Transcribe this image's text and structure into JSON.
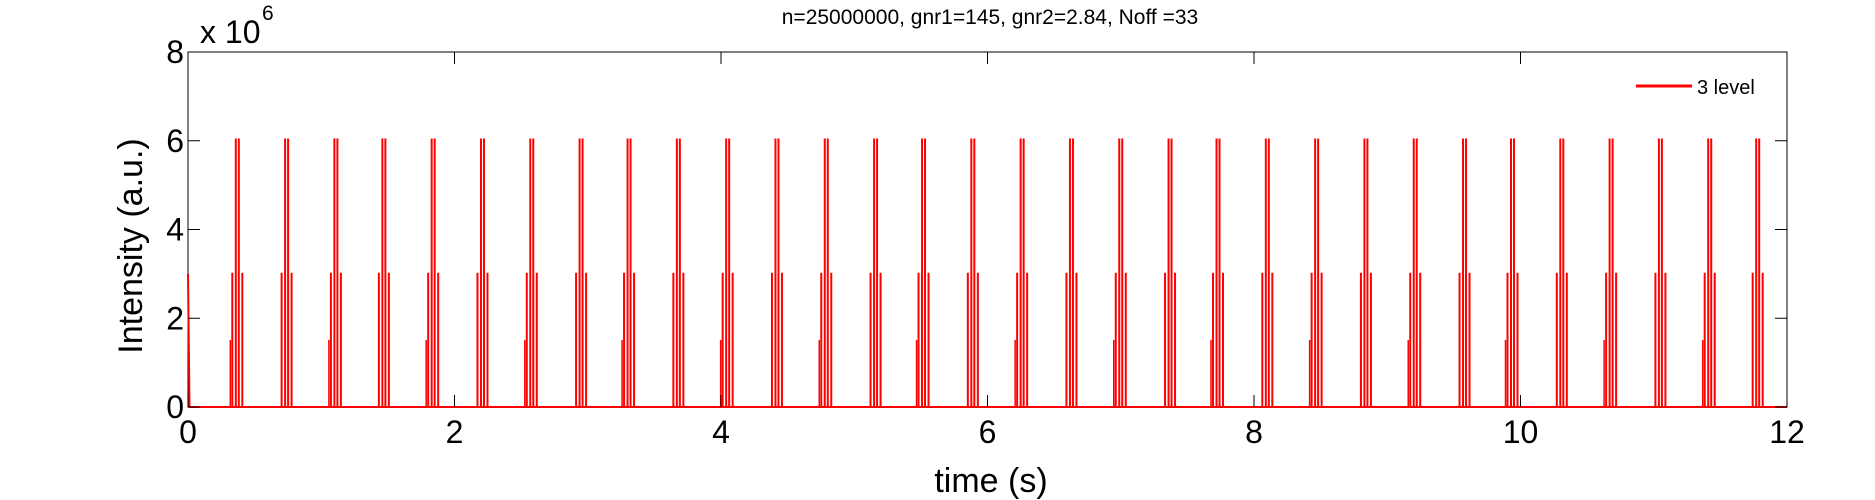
{
  "chart_data": {
    "type": "line",
    "title": "n=25000000, gnr1=145, gnr2=2.84, Noff =33",
    "xlabel": "time (s)",
    "ylabel": "Intensity (a.u.)",
    "y_multiplier_label": "x 10",
    "y_multiplier_exponent": "6",
    "xlim": [
      0,
      12
    ],
    "ylim": [
      0,
      8
    ],
    "y_scale": 1000000,
    "xticks": [
      "0",
      "2",
      "4",
      "6",
      "8",
      "10",
      "12"
    ],
    "yticks": [
      "0",
      "2",
      "4",
      "6",
      "8"
    ],
    "grid": false,
    "legend_position": "top-right",
    "series": [
      {
        "name": "3 level",
        "color": "#ff0000",
        "pulse_peak": 6.05,
        "pulse_times": [
          0.37,
          0.74,
          1.11,
          1.47,
          1.84,
          2.21,
          2.58,
          2.95,
          3.31,
          3.68,
          4.05,
          4.42,
          4.79,
          5.16,
          5.52,
          5.89,
          6.26,
          6.63,
          7.0,
          7.37,
          7.73,
          8.1,
          8.47,
          8.84,
          9.21,
          9.58,
          9.94,
          10.31,
          10.68,
          11.05,
          11.42,
          11.78
        ],
        "initial_value": 3.0
      }
    ]
  }
}
